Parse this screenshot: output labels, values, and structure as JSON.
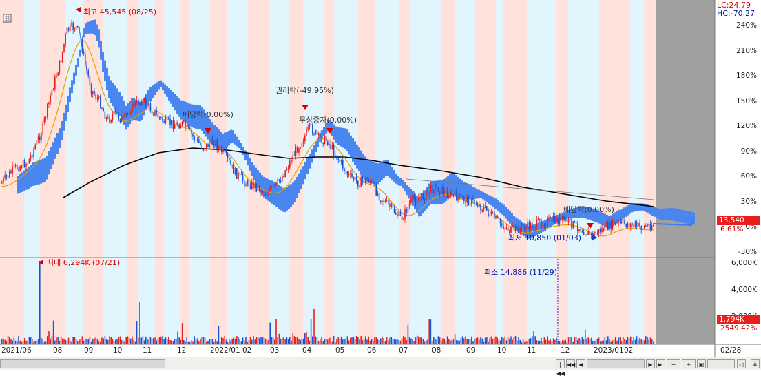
{
  "indicators": {
    "lc": "LC:24.79",
    "hc": "HC:-70.27"
  },
  "price_axis": [
    "240%",
    "210%",
    "180%",
    "150%",
    "120%",
    "90%",
    "60%",
    "30%",
    "0%",
    "-30%"
  ],
  "volume_axis": [
    "6,000K",
    "4,000K",
    "2,000K"
  ],
  "current": {
    "price": "13,540",
    "change": "6.61%",
    "volume": "1,794K",
    "volume_pct": "2549.42%"
  },
  "annotations": {
    "high": "최고 45,545 (08/25)",
    "low": "최저 10,850 (01/03)",
    "vol_max": "최대 6,294K (07/21)",
    "vol_min": "최소 14,886 (11/29)",
    "dividend1": "배당락(0.00%)",
    "rights": "권리락(-49.95%)",
    "bonus": "무상증자(0.00%)",
    "dividend2": "배당락(0.00%)"
  },
  "dates": [
    "2021/06",
    "08",
    "09",
    "10",
    "11",
    "12",
    "2022/01",
    "02",
    "03",
    "04",
    "05",
    "06",
    "07",
    "08",
    "09",
    "10",
    "11",
    "12",
    "2023/01",
    "02",
    "02/28"
  ],
  "nav": {
    "btn_first": "|◀◀",
    "btn_prev": "◀◀",
    "btn_back": "◀",
    "btn_next": "▶",
    "btn_last": "▶|",
    "letter": "A"
  },
  "colors": {
    "up": "#e8201c",
    "down": "#1a56d6",
    "cloud": "#4a86f0",
    "ma_short": "#e8a000",
    "ma_long": "#000000",
    "bg_pink": "#ffe2dc",
    "bg_blue": "#e2f4fc",
    "panel_gray": "#a0a0a0"
  },
  "chart_data": {
    "type": "candlestick",
    "y_axis_unit": "%",
    "ylim": [
      -30,
      250
    ],
    "close_series_pct": [
      20,
      25,
      35,
      50,
      90,
      150,
      225,
      245,
      200,
      160,
      135,
      150,
      160,
      155,
      130,
      125,
      120,
      105,
      95,
      95,
      90,
      65,
      45,
      30,
      45,
      85,
      110,
      105,
      90,
      65,
      55,
      45,
      30,
      15,
      25,
      40,
      45,
      40,
      30,
      15,
      12,
      13,
      10,
      8,
      5,
      4,
      5,
      6,
      0,
      5,
      8,
      7,
      5,
      3,
      4,
      6
    ],
    "annotated_high": {
      "price": 45545,
      "date": "08/25"
    },
    "annotated_low": {
      "price": 10850,
      "date": "01/03"
    },
    "volume_max": {
      "value": "6,294K",
      "date": "07/21"
    },
    "volume_min": {
      "value": "14,886",
      "date": "11/29"
    }
  }
}
